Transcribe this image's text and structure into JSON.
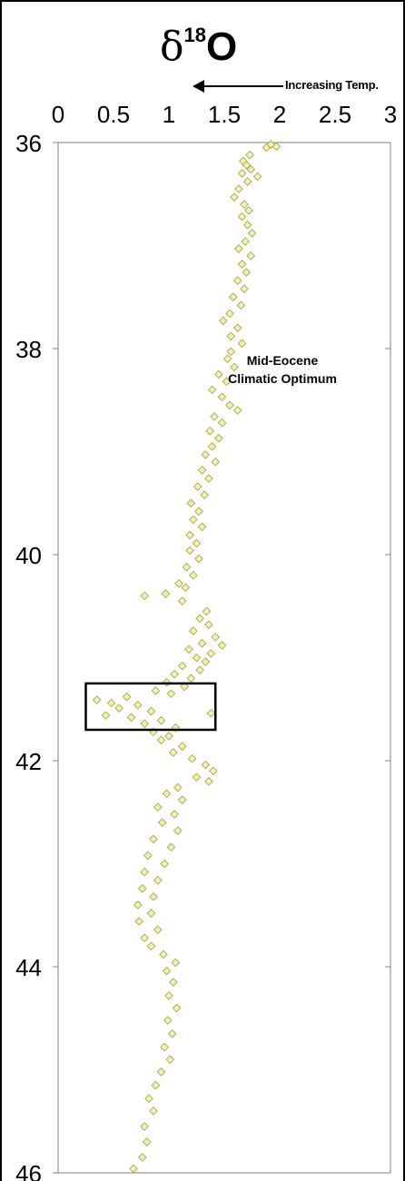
{
  "chart_data": {
    "type": "scatter",
    "title_symbol": "δ",
    "title_superscript": "18",
    "title_element": "O",
    "x_direction_label": "Increasing Temp.",
    "xlim": [
      0,
      3
    ],
    "ylim": [
      36,
      46
    ],
    "y_inverted": true,
    "x_ticks": [
      "0",
      "0.5",
      "1",
      "1.5",
      "2",
      "2.5",
      "3"
    ],
    "y_ticks": [
      "36",
      "38",
      "40",
      "42",
      "44",
      "46"
    ],
    "grid": false,
    "marker": {
      "shape": "diamond",
      "fill": "#f2f2a8",
      "stroke": "#a6a65a"
    },
    "annotation": {
      "lines": [
        "Mid-Eocene",
        "Climatic Optimum"
      ],
      "box_x": [
        0.25,
        1.42
      ],
      "box_y": [
        41.25,
        41.7
      ]
    },
    "points": [
      [
        1.92,
        36.02
      ],
      [
        1.97,
        36.04
      ],
      [
        1.88,
        36.05
      ],
      [
        1.73,
        36.12
      ],
      [
        1.67,
        36.18
      ],
      [
        1.7,
        36.22
      ],
      [
        1.74,
        36.26
      ],
      [
        1.66,
        36.3
      ],
      [
        1.8,
        36.33
      ],
      [
        1.71,
        36.38
      ],
      [
        1.63,
        36.45
      ],
      [
        1.59,
        36.53
      ],
      [
        1.68,
        36.6
      ],
      [
        1.72,
        36.66
      ],
      [
        1.66,
        36.72
      ],
      [
        1.71,
        36.8
      ],
      [
        1.75,
        36.88
      ],
      [
        1.69,
        36.96
      ],
      [
        1.63,
        37.03
      ],
      [
        1.74,
        37.1
      ],
      [
        1.66,
        37.18
      ],
      [
        1.7,
        37.26
      ],
      [
        1.62,
        37.34
      ],
      [
        1.68,
        37.42
      ],
      [
        1.58,
        37.5
      ],
      [
        1.65,
        37.58
      ],
      [
        1.55,
        37.66
      ],
      [
        1.49,
        37.73
      ],
      [
        1.62,
        37.8
      ],
      [
        1.56,
        37.88
      ],
      [
        1.66,
        37.95
      ],
      [
        1.56,
        38.03
      ],
      [
        1.53,
        38.1
      ],
      [
        1.59,
        38.18
      ],
      [
        1.45,
        38.25
      ],
      [
        1.52,
        38.32
      ],
      [
        1.39,
        38.4
      ],
      [
        1.48,
        38.47
      ],
      [
        1.55,
        38.55
      ],
      [
        1.62,
        38.6
      ],
      [
        1.41,
        38.66
      ],
      [
        1.48,
        38.72
      ],
      [
        1.37,
        38.8
      ],
      [
        1.45,
        38.87
      ],
      [
        1.39,
        38.95
      ],
      [
        1.33,
        39.03
      ],
      [
        1.42,
        39.1
      ],
      [
        1.3,
        39.18
      ],
      [
        1.36,
        39.26
      ],
      [
        1.26,
        39.34
      ],
      [
        1.32,
        39.42
      ],
      [
        1.2,
        39.5
      ],
      [
        1.27,
        39.58
      ],
      [
        1.22,
        39.66
      ],
      [
        1.3,
        39.73
      ],
      [
        1.19,
        39.81
      ],
      [
        1.25,
        39.89
      ],
      [
        1.19,
        39.96
      ],
      [
        1.27,
        40.04
      ],
      [
        1.16,
        40.12
      ],
      [
        1.22,
        40.2
      ],
      [
        1.09,
        40.28
      ],
      [
        1.15,
        40.32
      ],
      [
        0.97,
        40.38
      ],
      [
        0.78,
        40.4
      ],
      [
        1.12,
        40.45
      ],
      [
        1.34,
        40.55
      ],
      [
        1.28,
        40.62
      ],
      [
        1.36,
        40.68
      ],
      [
        1.22,
        40.74
      ],
      [
        1.42,
        40.8
      ],
      [
        1.3,
        40.86
      ],
      [
        1.48,
        40.88
      ],
      [
        1.18,
        40.92
      ],
      [
        1.38,
        40.96
      ],
      [
        1.25,
        41.0
      ],
      [
        1.33,
        41.04
      ],
      [
        1.12,
        41.08
      ],
      [
        1.28,
        41.12
      ],
      [
        1.05,
        41.16
      ],
      [
        1.2,
        41.2
      ],
      [
        0.98,
        41.24
      ],
      [
        1.14,
        41.28
      ],
      [
        0.88,
        41.32
      ],
      [
        1.02,
        41.35
      ],
      [
        0.62,
        41.38
      ],
      [
        0.35,
        41.41
      ],
      [
        0.48,
        41.44
      ],
      [
        0.72,
        41.46
      ],
      [
        0.55,
        41.49
      ],
      [
        0.84,
        41.52
      ],
      [
        1.38,
        41.54
      ],
      [
        0.43,
        41.56
      ],
      [
        0.66,
        41.58
      ],
      [
        0.93,
        41.61
      ],
      [
        0.78,
        41.64
      ],
      [
        1.06,
        41.68
      ],
      [
        0.86,
        41.72
      ],
      [
        1.0,
        41.76
      ],
      [
        0.93,
        41.8
      ],
      [
        1.12,
        41.86
      ],
      [
        1.04,
        41.92
      ],
      [
        1.21,
        41.98
      ],
      [
        1.33,
        42.04
      ],
      [
        1.4,
        42.1
      ],
      [
        1.25,
        42.16
      ],
      [
        1.36,
        42.2
      ],
      [
        1.08,
        42.26
      ],
      [
        0.98,
        42.32
      ],
      [
        1.12,
        42.38
      ],
      [
        0.9,
        42.45
      ],
      [
        1.05,
        42.52
      ],
      [
        0.94,
        42.6
      ],
      [
        1.08,
        42.68
      ],
      [
        0.86,
        42.76
      ],
      [
        1.02,
        42.84
      ],
      [
        0.81,
        42.92
      ],
      [
        0.96,
        43.0
      ],
      [
        0.78,
        43.08
      ],
      [
        0.9,
        43.16
      ],
      [
        0.76,
        43.24
      ],
      [
        0.86,
        43.32
      ],
      [
        0.72,
        43.4
      ],
      [
        0.84,
        43.48
      ],
      [
        0.73,
        43.56
      ],
      [
        0.9,
        43.64
      ],
      [
        0.78,
        43.72
      ],
      [
        0.84,
        43.8
      ],
      [
        0.95,
        43.88
      ],
      [
        1.06,
        43.96
      ],
      [
        0.98,
        44.04
      ],
      [
        1.04,
        44.15
      ],
      [
        1.0,
        44.28
      ],
      [
        1.07,
        44.4
      ],
      [
        0.99,
        44.52
      ],
      [
        1.03,
        44.65
      ],
      [
        0.96,
        44.78
      ],
      [
        1.01,
        44.9
      ],
      [
        0.93,
        45.02
      ],
      [
        0.88,
        45.15
      ],
      [
        0.82,
        45.28
      ],
      [
        0.86,
        45.4
      ],
      [
        0.78,
        45.55
      ],
      [
        0.8,
        45.7
      ],
      [
        0.76,
        45.85
      ],
      [
        0.68,
        45.96
      ]
    ]
  }
}
